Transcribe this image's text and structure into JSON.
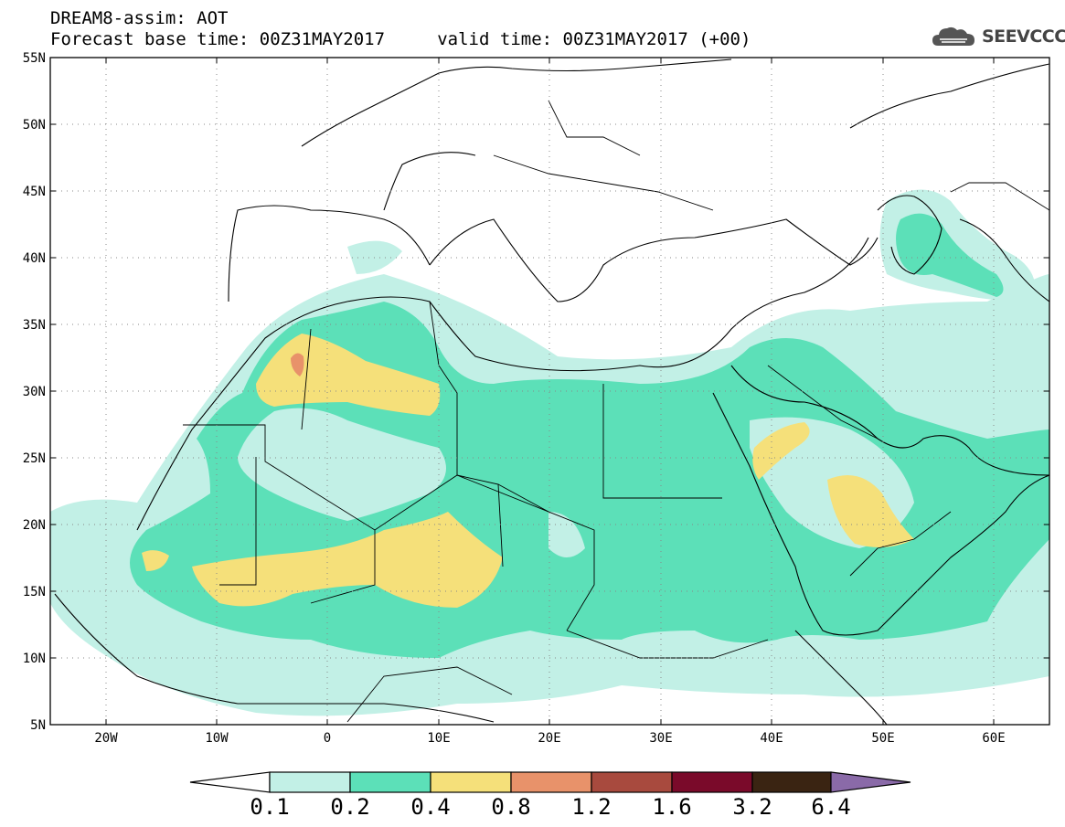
{
  "header": {
    "title": "DREAM8-assim: AOT",
    "subtitle": "Forecast base time: 00Z31MAY2017     valid time: 00Z31MAY2017 (+00)"
  },
  "logo": {
    "text": "SEEVCCC",
    "icon": "cloud-logo-icon"
  },
  "map": {
    "lon_range": [
      -25,
      65
    ],
    "lat_range": [
      5,
      55
    ],
    "grid": "dotted",
    "lat_labels": [
      "55N",
      "50N",
      "45N",
      "40N",
      "35N",
      "30N",
      "25N",
      "20N",
      "15N",
      "10N",
      "5N"
    ],
    "lon_labels": [
      "20W",
      "10W",
      "0",
      "10E",
      "20E",
      "30E",
      "40E",
      "50E",
      "60E"
    ]
  },
  "colorbar": {
    "labels": [
      "0.1",
      "0.2",
      "0.4",
      "0.8",
      "1.2",
      "1.6",
      "3.2",
      "6.4"
    ],
    "colors": [
      "#ffffff",
      "#c2f0e6",
      "#5ce0b8",
      "#f5e07a",
      "#e8926a",
      "#a84a3e",
      "#7a0a2a",
      "#3a2412",
      "#8a6aa8"
    ]
  }
}
